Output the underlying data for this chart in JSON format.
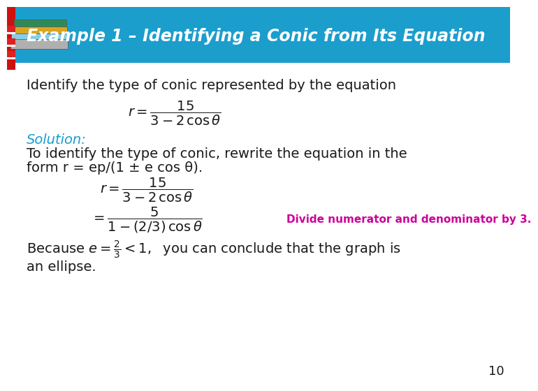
{
  "title": "Example 1 – Identifying a Conic from Its Equation",
  "title_bg_color": "#1B9ECC",
  "title_text_color": "#FFFFFF",
  "body_bg_color": "#FFFFFF",
  "line1": "Identify the type of conic represented by the equation",
  "solution_label": "Solution:",
  "solution_color": "#1B9ECC",
  "line2": "To identify the type of conic, rewrite the equation in the",
  "line3": "form r = ep/(1 ± e cos θ).",
  "annotation": "Divide numerator and denominator by 3.",
  "annotation_color": "#CC0099",
  "page_number": "10",
  "font_size_body": 14,
  "font_size_title": 17
}
